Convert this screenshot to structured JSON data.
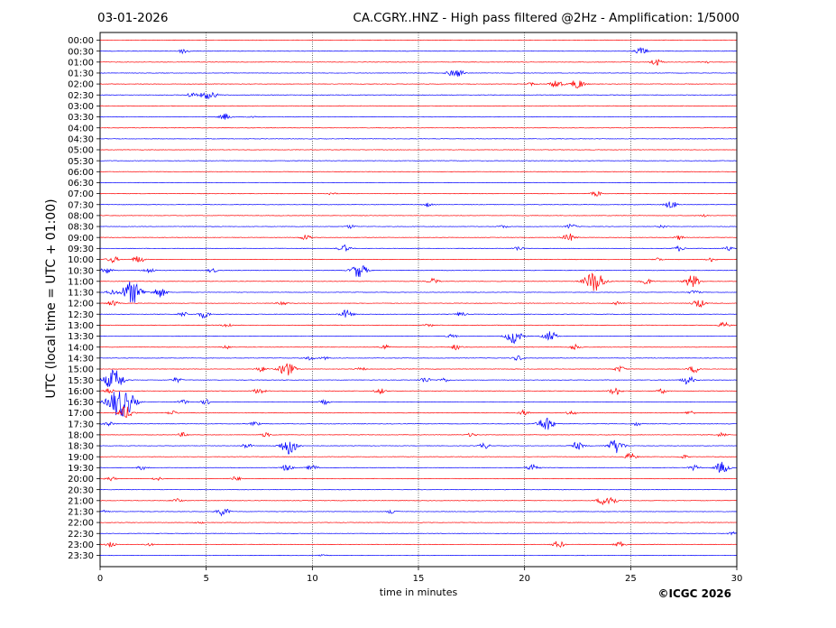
{
  "header": {
    "date": "03-01-2026",
    "title": "CA.CGRY..HNZ - High pass filtered @2Hz - Amplification: 1/5000"
  },
  "footer": {
    "copyright": "©ICGC 2026"
  },
  "colors": {
    "trace_a": "#ff0000",
    "trace_b": "#0000ff",
    "gridline": "#000000"
  },
  "chart_data": {
    "type": "line",
    "title": "CA.CGRY..HNZ - High pass filtered @2Hz - Amplification: 1/5000",
    "xlabel": "time in minutes",
    "ylabel": "UTC (local time = UTC + 01:00)",
    "xlim": [
      0,
      30
    ],
    "x_ticks": [
      "0",
      "5",
      "10",
      "15",
      "20",
      "25",
      "30"
    ],
    "vertical_gridlines_minutes": [
      5,
      10,
      15,
      20,
      25
    ],
    "series": [
      {
        "label": "00:00",
        "color": "#ff0000",
        "events": []
      },
      {
        "label": "00:30",
        "color": "#0000ff",
        "events": [
          [
            3.95,
            0.35
          ],
          [
            25.5,
            0.55
          ]
        ]
      },
      {
        "label": "01:00",
        "color": "#ff0000",
        "events": [
          [
            26.2,
            0.5
          ],
          [
            28.5,
            0.2
          ]
        ]
      },
      {
        "label": "01:30",
        "color": "#0000ff",
        "events": [
          [
            16.5,
            0.3
          ],
          [
            16.9,
            0.5
          ]
        ]
      },
      {
        "label": "02:00",
        "color": "#ff0000",
        "events": [
          [
            21.5,
            0.6
          ],
          [
            22.5,
            0.7
          ],
          [
            20.3,
            0.2
          ]
        ]
      },
      {
        "label": "02:30",
        "color": "#0000ff",
        "events": [
          [
            4.3,
            0.35
          ],
          [
            5.0,
            0.55
          ],
          [
            5.4,
            0.25
          ]
        ]
      },
      {
        "label": "03:00",
        "color": "#ff0000",
        "events": []
      },
      {
        "label": "03:30",
        "color": "#0000ff",
        "events": [
          [
            5.9,
            0.45
          ],
          [
            7.2,
            0.2
          ]
        ]
      },
      {
        "label": "04:00",
        "color": "#ff0000",
        "events": []
      },
      {
        "label": "04:30",
        "color": "#0000ff",
        "events": []
      },
      {
        "label": "05:00",
        "color": "#ff0000",
        "events": []
      },
      {
        "label": "05:30",
        "color": "#0000ff",
        "events": []
      },
      {
        "label": "06:00",
        "color": "#ff0000",
        "events": []
      },
      {
        "label": "06:30",
        "color": "#0000ff",
        "events": []
      },
      {
        "label": "07:00",
        "color": "#ff0000",
        "events": [
          [
            10.9,
            0.2
          ],
          [
            23.4,
            0.35
          ]
        ]
      },
      {
        "label": "07:30",
        "color": "#0000ff",
        "events": [
          [
            15.4,
            0.3
          ],
          [
            26.9,
            0.55
          ]
        ]
      },
      {
        "label": "08:00",
        "color": "#ff0000",
        "events": [
          [
            28.5,
            0.15
          ]
        ]
      },
      {
        "label": "08:30",
        "color": "#0000ff",
        "events": [
          [
            11.8,
            0.25
          ],
          [
            19.0,
            0.2
          ],
          [
            22.2,
            0.35
          ],
          [
            26.5,
            0.2
          ]
        ]
      },
      {
        "label": "09:00",
        "color": "#ff0000",
        "events": [
          [
            9.7,
            0.4
          ],
          [
            22.1,
            0.55
          ],
          [
            27.3,
            0.3
          ]
        ]
      },
      {
        "label": "09:30",
        "color": "#0000ff",
        "events": [
          [
            11.5,
            0.5
          ],
          [
            19.7,
            0.3
          ],
          [
            27.3,
            0.35
          ],
          [
            29.6,
            0.3
          ]
        ]
      },
      {
        "label": "10:00",
        "color": "#ff0000",
        "events": [
          [
            0.6,
            0.45
          ],
          [
            1.8,
            0.5
          ],
          [
            28.8,
            0.3
          ],
          [
            26.3,
            0.25
          ]
        ]
      },
      {
        "label": "10:30",
        "color": "#0000ff",
        "events": [
          [
            0.3,
            0.45
          ],
          [
            2.3,
            0.4
          ],
          [
            12.2,
            1.0
          ],
          [
            5.3,
            0.3
          ]
        ]
      },
      {
        "label": "11:00",
        "color": "#ff0000",
        "events": [
          [
            23.3,
            1.5
          ],
          [
            15.7,
            0.4
          ],
          [
            25.7,
            0.5
          ],
          [
            27.9,
            0.9
          ]
        ]
      },
      {
        "label": "11:30",
        "color": "#0000ff",
        "events": [
          [
            1.5,
            1.6
          ],
          [
            2.8,
            0.7
          ],
          [
            0.5,
            0.3
          ],
          [
            28.0,
            0.3
          ]
        ]
      },
      {
        "label": "12:00",
        "color": "#ff0000",
        "events": [
          [
            0.6,
            0.4
          ],
          [
            8.6,
            0.3
          ],
          [
            24.4,
            0.3
          ],
          [
            28.2,
            0.6
          ]
        ]
      },
      {
        "label": "12:30",
        "color": "#0000ff",
        "events": [
          [
            4.9,
            0.5
          ],
          [
            11.6,
            0.6
          ],
          [
            3.9,
            0.35
          ],
          [
            17.0,
            0.3
          ]
        ]
      },
      {
        "label": "13:00",
        "color": "#ff0000",
        "events": [
          [
            6.0,
            0.3
          ],
          [
            29.4,
            0.4
          ],
          [
            15.5,
            0.2
          ]
        ]
      },
      {
        "label": "13:30",
        "color": "#0000ff",
        "events": [
          [
            19.5,
            1.0
          ],
          [
            21.2,
            0.7
          ],
          [
            16.6,
            0.3
          ]
        ]
      },
      {
        "label": "14:00",
        "color": "#ff0000",
        "events": [
          [
            13.4,
            0.35
          ],
          [
            16.8,
            0.4
          ],
          [
            22.4,
            0.4
          ],
          [
            6.0,
            0.25
          ]
        ]
      },
      {
        "label": "14:30",
        "color": "#0000ff",
        "events": [
          [
            9.9,
            0.3
          ],
          [
            19.7,
            0.35
          ],
          [
            10.6,
            0.2
          ]
        ]
      },
      {
        "label": "15:00",
        "color": "#ff0000",
        "events": [
          [
            8.8,
            1.0
          ],
          [
            7.6,
            0.35
          ],
          [
            24.5,
            0.4
          ],
          [
            28.0,
            0.5
          ],
          [
            12.3,
            0.25
          ]
        ]
      },
      {
        "label": "15:30",
        "color": "#0000ff",
        "events": [
          [
            0.65,
            1.5
          ],
          [
            3.6,
            0.35
          ],
          [
            15.3,
            0.4
          ],
          [
            27.7,
            0.6
          ],
          [
            16.2,
            0.3
          ]
        ]
      },
      {
        "label": "16:00",
        "color": "#ff0000",
        "events": [
          [
            7.5,
            0.45
          ],
          [
            13.2,
            0.4
          ],
          [
            24.3,
            0.55
          ],
          [
            0.4,
            0.35
          ],
          [
            26.5,
            0.3
          ]
        ]
      },
      {
        "label": "16:30",
        "color": "#0000ff",
        "events": [
          [
            1.2,
            1.6
          ],
          [
            0.7,
            1.3
          ],
          [
            5.0,
            0.35
          ],
          [
            10.6,
            0.3
          ],
          [
            3.9,
            0.3
          ]
        ]
      },
      {
        "label": "17:00",
        "color": "#ff0000",
        "events": [
          [
            1.2,
            0.9
          ],
          [
            20.0,
            0.4
          ],
          [
            22.2,
            0.3
          ],
          [
            3.4,
            0.3
          ],
          [
            27.8,
            0.3
          ]
        ]
      },
      {
        "label": "17:30",
        "color": "#0000ff",
        "events": [
          [
            21.0,
            1.0
          ],
          [
            0.4,
            0.3
          ],
          [
            7.3,
            0.3
          ],
          [
            25.3,
            0.25
          ]
        ]
      },
      {
        "label": "18:00",
        "color": "#ff0000",
        "events": [
          [
            3.9,
            0.3
          ],
          [
            7.8,
            0.3
          ],
          [
            17.5,
            0.25
          ],
          [
            29.3,
            0.3
          ]
        ]
      },
      {
        "label": "18:30",
        "color": "#0000ff",
        "events": [
          [
            8.9,
            1.2
          ],
          [
            24.3,
            1.0
          ],
          [
            22.5,
            0.55
          ],
          [
            18.1,
            0.4
          ],
          [
            6.9,
            0.35
          ]
        ]
      },
      {
        "label": "19:00",
        "color": "#ff0000",
        "events": [
          [
            25.0,
            0.5
          ],
          [
            27.5,
            0.25
          ]
        ]
      },
      {
        "label": "19:30",
        "color": "#0000ff",
        "events": [
          [
            8.8,
            0.45
          ],
          [
            10.0,
            0.4
          ],
          [
            20.4,
            0.55
          ],
          [
            29.3,
            0.8
          ],
          [
            2.0,
            0.3
          ],
          [
            28.0,
            0.35
          ]
        ]
      },
      {
        "label": "20:00",
        "color": "#ff0000",
        "events": [
          [
            0.5,
            0.3
          ],
          [
            6.4,
            0.3
          ],
          [
            2.7,
            0.25
          ]
        ]
      },
      {
        "label": "20:30",
        "color": "#0000ff",
        "events": []
      },
      {
        "label": "21:00",
        "color": "#ff0000",
        "events": [
          [
            3.6,
            0.3
          ],
          [
            24.0,
            0.8
          ],
          [
            23.6,
            0.3
          ]
        ]
      },
      {
        "label": "21:30",
        "color": "#0000ff",
        "events": [
          [
            5.8,
            0.6
          ],
          [
            13.8,
            0.35
          ],
          [
            0.2,
            0.2
          ]
        ]
      },
      {
        "label": "22:00",
        "color": "#ff0000",
        "events": [
          [
            4.7,
            0.15
          ]
        ]
      },
      {
        "label": "22:30",
        "color": "#0000ff",
        "events": [
          [
            29.8,
            0.2
          ]
        ]
      },
      {
        "label": "23:00",
        "color": "#ff0000",
        "events": [
          [
            21.6,
            0.5
          ],
          [
            24.5,
            0.4
          ],
          [
            0.5,
            0.3
          ],
          [
            2.3,
            0.2
          ]
        ]
      },
      {
        "label": "23:30",
        "color": "#0000ff",
        "events": [
          [
            10.5,
            0.1
          ]
        ]
      }
    ]
  }
}
